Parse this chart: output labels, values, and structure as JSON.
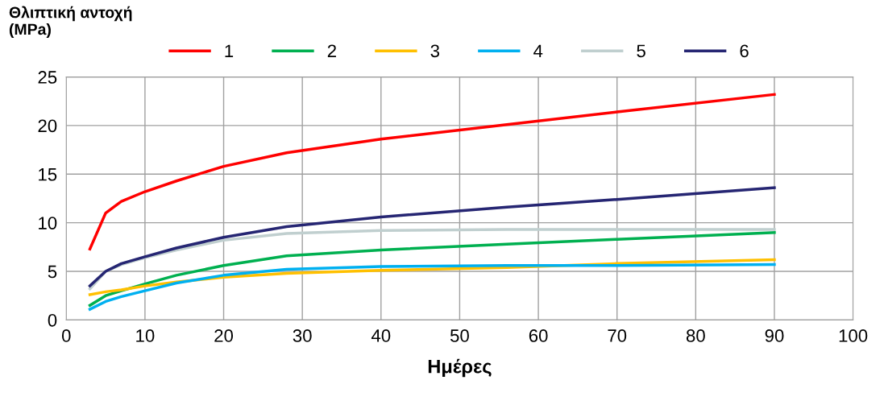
{
  "chart_data": {
    "type": "line",
    "ylabel": "Θλιπτική αντοχή\n(MPa)",
    "xlabel": "Ημέρες",
    "x": [
      3,
      5,
      7,
      10,
      14,
      20,
      28,
      40,
      56,
      70,
      90
    ],
    "series": [
      {
        "name": "1",
        "color": "#ff0000",
        "values": [
          7.3,
          11,
          12.2,
          13.2,
          14.3,
          15.8,
          17.2,
          18.6,
          20.1,
          21.4,
          23.2
        ]
      },
      {
        "name": "2",
        "color": "#00b050",
        "values": [
          1.5,
          2.5,
          3.0,
          3.7,
          4.6,
          5.6,
          6.6,
          7.2,
          7.8,
          8.3,
          9.0
        ]
      },
      {
        "name": "3",
        "color": "#ffc000",
        "values": [
          2.6,
          2.9,
          3.1,
          3.5,
          3.9,
          4.4,
          4.8,
          5.1,
          5.4,
          5.8,
          6.2
        ]
      },
      {
        "name": "4",
        "color": "#00b0f0",
        "values": [
          1.1,
          1.9,
          2.4,
          3.0,
          3.8,
          4.6,
          5.2,
          5.5,
          5.6,
          5.6,
          5.7
        ]
      },
      {
        "name": "5",
        "color": "#c0cfcf",
        "values": [
          3.2,
          5.0,
          5.7,
          6.4,
          7.2,
          8.2,
          8.9,
          9.2,
          9.3,
          9.3,
          9.3
        ]
      },
      {
        "name": "6",
        "color": "#262673",
        "values": [
          3.5,
          5.0,
          5.8,
          6.5,
          7.4,
          8.5,
          9.6,
          10.6,
          11.6,
          12.4,
          13.6
        ]
      }
    ],
    "xlim": [
      0,
      100
    ],
    "xticks": [
      0,
      10,
      20,
      30,
      40,
      50,
      60,
      70,
      80,
      90,
      100
    ],
    "ylim": [
      0,
      25
    ],
    "yticks": [
      0,
      5,
      10,
      15,
      20,
      25
    ],
    "grid": true,
    "legend": "top",
    "marker": "none",
    "line_style": "solid"
  }
}
